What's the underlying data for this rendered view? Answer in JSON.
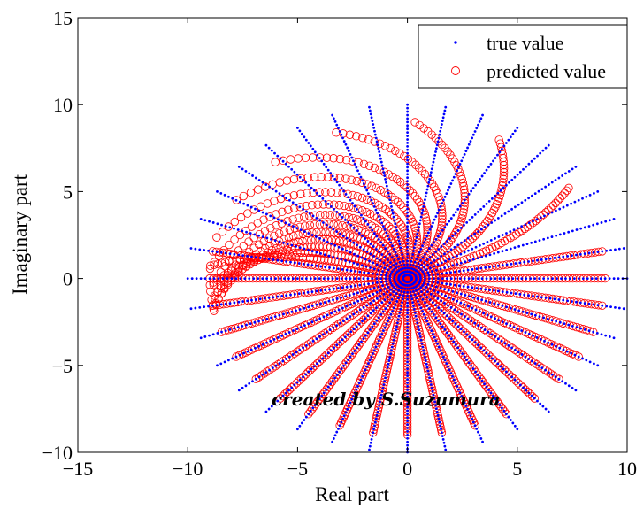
{
  "chart_data": {
    "type": "scatter",
    "title": "",
    "xlabel": "Real part",
    "ylabel": "Imaginary part",
    "xlim": [
      -15,
      10
    ],
    "ylim": [
      -10,
      15
    ],
    "xticks": [
      -15,
      -10,
      -5,
      0,
      5,
      10
    ],
    "yticks": [
      -10,
      -5,
      0,
      5,
      10,
      15
    ],
    "xtick_labels": [
      "−15",
      "−10",
      "−5",
      "0",
      "5",
      "10"
    ],
    "ytick_labels": [
      "−10",
      "−5",
      "0",
      "5",
      "10",
      "15"
    ],
    "grid": false,
    "legend": {
      "placement": "top-right"
    },
    "series": [
      {
        "name": "true value",
        "marker": "dot",
        "color": "#0000ff",
        "num_rays": 36,
        "max_radius": 10,
        "points_per_ray": 50
      },
      {
        "name": "predicted value",
        "marker": "circle",
        "color": "#ff0000",
        "num_rays": 36,
        "max_radius": 9,
        "points_per_ray": 55
      }
    ]
  },
  "watermark": "created by S.Suzumura"
}
